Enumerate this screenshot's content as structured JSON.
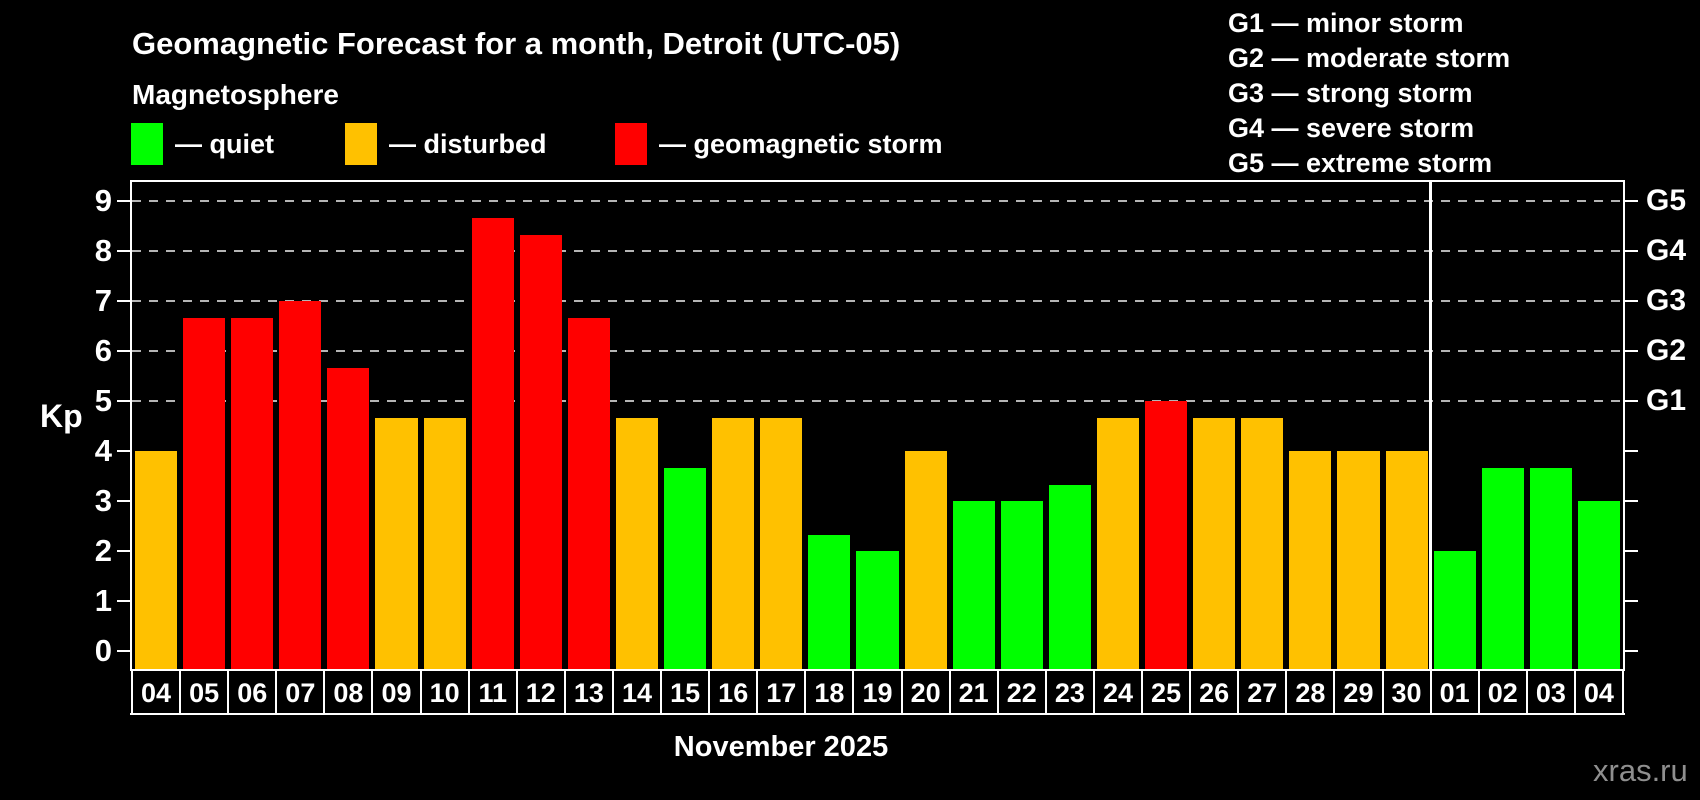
{
  "header": {
    "title": "Geomagnetic Forecast for a month, Detroit (UTC-05)",
    "subtitle": "Magnetosphere"
  },
  "legend": {
    "items": [
      {
        "key": "quiet",
        "label": "— quiet",
        "color": "#00ff00"
      },
      {
        "key": "disturbed",
        "label": "— disturbed",
        "color": "#ffc100"
      },
      {
        "key": "storm",
        "label": "— geomagnetic storm",
        "color": "#ff0000"
      }
    ]
  },
  "storm_scale_legend": {
    "lines": [
      "G1 — minor storm",
      "G2 — moderate storm",
      "G3 — strong storm",
      "G4 — severe storm",
      "G5 — extreme storm"
    ]
  },
  "chart_data": {
    "type": "bar",
    "title": "Geomagnetic Forecast for a month, Detroit (UTC-05)",
    "subtitle": "Magnetosphere",
    "ylabel": "Kp",
    "ylim": [
      -0.36,
      9.38
    ],
    "yticks": [
      0,
      1,
      2,
      3,
      4,
      5,
      6,
      7,
      8,
      9
    ],
    "gridlines_at": [
      5,
      6,
      7,
      8,
      9
    ],
    "grid": "dashed horizontal lines at storm levels only",
    "right_axis": [
      {
        "kp": 5,
        "label": "G1"
      },
      {
        "kp": 6,
        "label": "G2"
      },
      {
        "kp": 7,
        "label": "G3"
      },
      {
        "kp": 8,
        "label": "G4"
      },
      {
        "kp": 9,
        "label": "G5"
      }
    ],
    "thresholds": {
      "disturbed_min": 4,
      "storm_min": 5
    },
    "categories": [
      "04",
      "05",
      "06",
      "07",
      "08",
      "09",
      "10",
      "11",
      "12",
      "13",
      "14",
      "15",
      "16",
      "17",
      "18",
      "19",
      "20",
      "21",
      "22",
      "23",
      "24",
      "25",
      "26",
      "27",
      "28",
      "29",
      "30",
      "01",
      "02",
      "03",
      "04"
    ],
    "values": [
      4,
      6.67,
      6.67,
      7,
      5.67,
      4.67,
      4.67,
      8.67,
      8.33,
      6.67,
      4.67,
      3.67,
      4.67,
      4.67,
      2.33,
      2,
      4,
      3,
      3,
      3.33,
      4.67,
      5,
      4.67,
      4.67,
      4,
      4,
      4,
      2,
      3.67,
      3.67,
      3
    ],
    "x_sections": [
      {
        "label": "November 2025",
        "days": 27
      },
      {
        "label": "",
        "days": 4
      }
    ]
  },
  "footer": {
    "month_label": "November 2025",
    "watermark": "xras.ru"
  }
}
